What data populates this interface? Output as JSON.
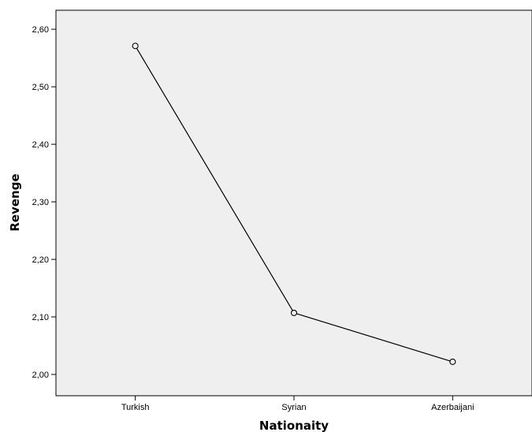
{
  "chart_data": {
    "type": "line",
    "title": "",
    "xlabel": "Nationaity",
    "ylabel": "Revenge",
    "categories": [
      "Turkish",
      "Syrian",
      "Azerbaijani"
    ],
    "values": [
      2.571,
      2.107,
      2.022
    ],
    "ylim": [
      1.963,
      2.633
    ],
    "yticks": [
      2.0,
      2.1,
      2.2,
      2.3,
      2.4,
      2.5,
      2.6
    ],
    "ytick_labels": [
      "2,00",
      "2,10",
      "2,20",
      "2,30",
      "2,40",
      "2,50",
      "2,60"
    ],
    "grid": false,
    "marker": "open-circle",
    "colors": {
      "plot_background": "#efefef",
      "line": "#000000",
      "axis": "#000000"
    }
  }
}
